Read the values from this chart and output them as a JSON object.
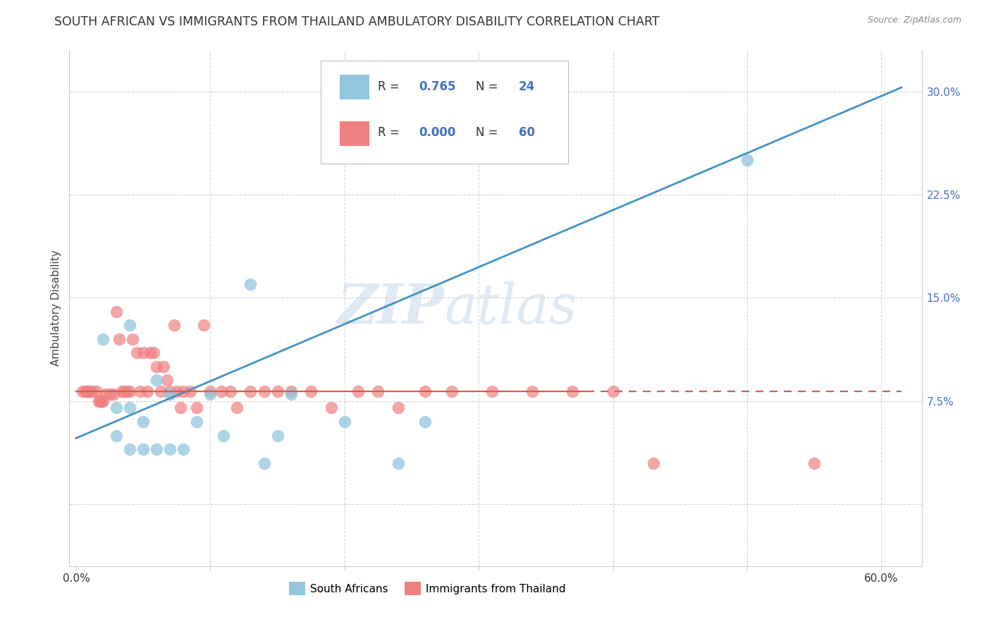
{
  "title": "SOUTH AFRICAN VS IMMIGRANTS FROM THAILAND AMBULATORY DISABILITY CORRELATION CHART",
  "source": "Source: ZipAtlas.com",
  "ylabel": "Ambulatory Disability",
  "x_ticks": [
    0.0,
    0.1,
    0.2,
    0.3,
    0.4,
    0.5,
    0.6
  ],
  "y_ticks": [
    0.0,
    0.075,
    0.15,
    0.225,
    0.3
  ],
  "y_tick_labels": [
    "",
    "7.5%",
    "15.0%",
    "22.5%",
    "30.0%"
  ],
  "xlim": [
    -0.005,
    0.63
  ],
  "ylim": [
    -0.045,
    0.33
  ],
  "legend_label1": "South Africans",
  "legend_label2": "Immigrants from Thailand",
  "color_blue": "#92c5de",
  "color_blue_line": "#4393c3",
  "color_pink": "#f4a582",
  "color_pink_line": "#d6604d",
  "color_pink_scatter": "#f08080",
  "watermark_zip": "ZIP",
  "watermark_atlas": "atlas",
  "title_fontsize": 12.5,
  "south_african_x": [
    0.02,
    0.03,
    0.03,
    0.04,
    0.04,
    0.04,
    0.05,
    0.05,
    0.06,
    0.06,
    0.07,
    0.07,
    0.08,
    0.09,
    0.1,
    0.11,
    0.13,
    0.14,
    0.15,
    0.16,
    0.2,
    0.24,
    0.26,
    0.5
  ],
  "south_african_y": [
    0.12,
    0.07,
    0.05,
    0.04,
    0.13,
    0.07,
    0.04,
    0.06,
    0.04,
    0.09,
    0.04,
    0.08,
    0.04,
    0.06,
    0.08,
    0.05,
    0.16,
    0.03,
    0.05,
    0.08,
    0.06,
    0.03,
    0.06,
    0.25
  ],
  "thailand_x": [
    0.005,
    0.007,
    0.008,
    0.009,
    0.01,
    0.012,
    0.015,
    0.017,
    0.018,
    0.019,
    0.02,
    0.022,
    0.025,
    0.028,
    0.03,
    0.032,
    0.034,
    0.036,
    0.038,
    0.04,
    0.042,
    0.045,
    0.048,
    0.05,
    0.053,
    0.055,
    0.058,
    0.06,
    0.063,
    0.065,
    0.068,
    0.07,
    0.073,
    0.075,
    0.078,
    0.08,
    0.085,
    0.09,
    0.095,
    0.1,
    0.108,
    0.115,
    0.12,
    0.13,
    0.14,
    0.15,
    0.16,
    0.175,
    0.19,
    0.21,
    0.225,
    0.24,
    0.26,
    0.28,
    0.31,
    0.34,
    0.37,
    0.4,
    0.43,
    0.55
  ],
  "thailand_y": [
    0.082,
    0.082,
    0.082,
    0.082,
    0.082,
    0.082,
    0.082,
    0.075,
    0.075,
    0.075,
    0.075,
    0.08,
    0.08,
    0.08,
    0.14,
    0.12,
    0.082,
    0.082,
    0.082,
    0.082,
    0.12,
    0.11,
    0.082,
    0.11,
    0.082,
    0.11,
    0.11,
    0.1,
    0.082,
    0.1,
    0.09,
    0.082,
    0.13,
    0.082,
    0.07,
    0.082,
    0.082,
    0.07,
    0.13,
    0.082,
    0.082,
    0.082,
    0.07,
    0.082,
    0.082,
    0.082,
    0.082,
    0.082,
    0.07,
    0.082,
    0.082,
    0.07,
    0.082,
    0.082,
    0.082,
    0.082,
    0.082,
    0.082,
    0.03,
    0.03
  ],
  "blue_line_x_start": 0.0,
  "blue_line_x_end": 0.615,
  "blue_line_y_start": 0.048,
  "blue_line_y_end": 0.303,
  "pink_line_y": 0.082,
  "pink_line_x_solid_end": 0.38,
  "pink_line_x_dashed_end": 0.615,
  "background_color": "#ffffff",
  "grid_color": "#d0d0d0",
  "tick_color": "#4472c4",
  "spine_color": "#cccccc"
}
